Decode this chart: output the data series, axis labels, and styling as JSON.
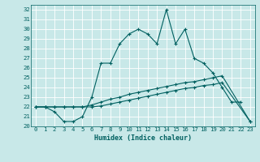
{
  "xlabel": "Humidex (Indice chaleur)",
  "bg_color": "#c8e8e8",
  "grid_color": "#ffffff",
  "line_color": "#006060",
  "xlim": [
    -0.5,
    23.5
  ],
  "ylim": [
    20.0,
    32.5
  ],
  "xticks": [
    0,
    1,
    2,
    3,
    4,
    5,
    6,
    7,
    8,
    9,
    10,
    11,
    12,
    13,
    14,
    15,
    16,
    17,
    18,
    19,
    20,
    21,
    22,
    23
  ],
  "yticks": [
    20,
    21,
    22,
    23,
    24,
    25,
    26,
    27,
    28,
    29,
    30,
    31,
    32
  ],
  "line1_x": [
    0,
    1,
    2,
    3,
    4,
    5,
    6,
    7,
    8,
    9,
    10,
    11,
    12,
    13,
    14,
    15,
    16,
    17,
    18,
    19,
    20,
    21,
    22
  ],
  "line1_y": [
    22.0,
    22.0,
    21.5,
    20.5,
    20.5,
    21.0,
    23.0,
    26.5,
    26.5,
    28.5,
    29.5,
    30.0,
    29.5,
    28.5,
    32.0,
    28.5,
    30.0,
    27.0,
    26.5,
    25.5,
    24.0,
    22.5,
    22.5
  ],
  "line2_x": [
    0,
    1,
    2,
    3,
    4,
    5,
    6,
    7,
    8,
    9,
    10,
    11,
    12,
    13,
    14,
    15,
    16,
    17,
    18,
    19,
    20,
    23
  ],
  "line2_y": [
    22.0,
    22.0,
    22.0,
    22.0,
    22.0,
    22.0,
    22.2,
    22.5,
    22.8,
    23.0,
    23.3,
    23.5,
    23.7,
    23.9,
    24.1,
    24.3,
    24.5,
    24.6,
    24.8,
    25.0,
    25.2,
    20.5
  ],
  "line3_x": [
    0,
    1,
    2,
    3,
    4,
    5,
    6,
    7,
    8,
    9,
    10,
    11,
    12,
    13,
    14,
    15,
    16,
    17,
    18,
    19,
    20,
    23
  ],
  "line3_y": [
    22.0,
    22.0,
    22.0,
    22.0,
    22.0,
    22.0,
    22.0,
    22.1,
    22.3,
    22.5,
    22.7,
    22.9,
    23.1,
    23.3,
    23.5,
    23.7,
    23.9,
    24.0,
    24.2,
    24.3,
    24.5,
    20.5
  ],
  "marker": "+"
}
